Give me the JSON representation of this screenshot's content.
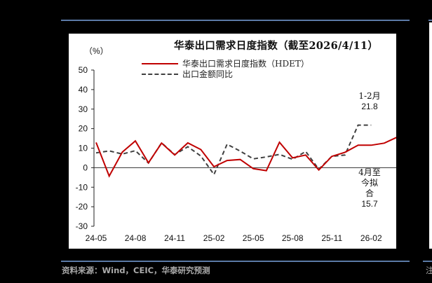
{
  "header": {
    "rule_color": "#5b7aa6"
  },
  "chart": {
    "title": "华泰出口需求日度指数（截至2026/4/11）",
    "unit": "（%）",
    "legend": [
      {
        "label": "华泰出口需求日度指数（HDET）",
        "color": "#c00000",
        "style": "solid"
      },
      {
        "label": "出口金额同比",
        "color": "#404040",
        "style": "dashed"
      }
    ],
    "annotations": {
      "jan_feb_label": "1-2月",
      "jan_feb_value": "21.8",
      "april_line1": "4月至",
      "april_line2": "今拟",
      "april_line3": "合",
      "april_value": "15.7"
    }
  },
  "chart_data": {
    "type": "line",
    "title": "华泰出口需求日度指数（截至2026/4/11）",
    "xlabel": "",
    "ylabel": "（%）",
    "ylim": [
      -30,
      50
    ],
    "yticks": [
      50,
      40,
      30,
      20,
      10,
      0,
      -10,
      -20,
      -30
    ],
    "x_tick_labels": [
      "24-05",
      "24-08",
      "24-11",
      "25-02",
      "25-05",
      "25-08",
      "25-11",
      "26-02"
    ],
    "x": [
      "24-05",
      "24-06",
      "24-07",
      "24-08",
      "24-09",
      "24-10",
      "24-11",
      "24-12",
      "25-01",
      "25-02",
      "25-03",
      "25-04",
      "25-05",
      "25-06",
      "25-07",
      "25-08",
      "25-09",
      "25-10",
      "25-11",
      "25-12",
      "26-01",
      "26-02",
      "26-03",
      "26-04"
    ],
    "series": [
      {
        "name": "华泰出口需求日度指数（HDET）",
        "color": "#c00000",
        "values": [
          12.9,
          -4.3,
          8.0,
          13.7,
          2.5,
          12.6,
          6.5,
          12.7,
          9.3,
          0.5,
          3.7,
          4.2,
          -0.5,
          -1.5,
          13.0,
          5.0,
          6.5,
          -1.2,
          5.8,
          7.9,
          11.5,
          11.5,
          12.6,
          15.7
        ]
      },
      {
        "name": "出口金额同比",
        "color": "#404040",
        "values": [
          7.6,
          8.6,
          7.0,
          8.7,
          2.4,
          12.7,
          6.7,
          10.7,
          6.0,
          -3.5,
          12.0,
          8.5,
          4.5,
          5.5,
          6.8,
          4.3,
          8.3,
          -0.8,
          5.8,
          6.5,
          21.8,
          21.8,
          null,
          null
        ]
      }
    ],
    "annotations": [
      {
        "text": "1-2月 21.8",
        "x": "26-01"
      },
      {
        "text": "4月至今拟合 15.7",
        "x": "26-04"
      }
    ],
    "grid": false,
    "legend_position": "top-left-inside"
  },
  "footer": {
    "source": "资料来源：Wind，CEIC，华泰研究预测",
    "tail": "注"
  }
}
